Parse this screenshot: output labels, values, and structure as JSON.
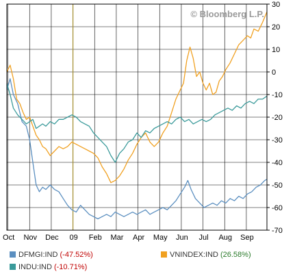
{
  "watermark": "© Bloomberg L.P.",
  "chart_data": {
    "type": "line",
    "title": "",
    "xlabel": "",
    "ylabel": "",
    "grid": true,
    "ylim": [
      -70,
      30
    ],
    "yticks": [
      30,
      20,
      10,
      0,
      -10,
      -20,
      -30,
      -40,
      -50,
      -60,
      -70
    ],
    "xlim": [
      0,
      12
    ],
    "x_tick_labels": [
      {
        "x": 0.05,
        "label": "Oct"
      },
      {
        "x": 1.05,
        "label": "Nov"
      },
      {
        "x": 2.05,
        "label": "Dec"
      },
      {
        "x": 3.05,
        "label": "09"
      },
      {
        "x": 4.05,
        "label": "Feb"
      },
      {
        "x": 5.05,
        "label": "Mar"
      },
      {
        "x": 6.05,
        "label": "Apr"
      },
      {
        "x": 7.05,
        "label": "May"
      },
      {
        "x": 8.05,
        "label": "Jun"
      },
      {
        "x": 9.05,
        "label": "Jul"
      },
      {
        "x": 10.05,
        "label": "Aug"
      },
      {
        "x": 11.05,
        "label": "Sep"
      }
    ],
    "year_marker_x": 3.05,
    "series": [
      {
        "name": "DFMGI:IND",
        "change": "(-47.52%)",
        "change_sign": "neg",
        "color": "#5b8fc0",
        "points": [
          [
            0,
            -8
          ],
          [
            0.15,
            -3
          ],
          [
            0.3,
            -10
          ],
          [
            0.5,
            -14
          ],
          [
            0.7,
            -22
          ],
          [
            0.9,
            -24
          ],
          [
            1.05,
            -30
          ],
          [
            1.2,
            -40
          ],
          [
            1.35,
            -50
          ],
          [
            1.5,
            -53
          ],
          [
            1.65,
            -51
          ],
          [
            1.8,
            -52
          ],
          [
            2.0,
            -50
          ],
          [
            2.2,
            -52
          ],
          [
            2.4,
            -53
          ],
          [
            2.6,
            -56
          ],
          [
            2.8,
            -59
          ],
          [
            3.0,
            -61
          ],
          [
            3.2,
            -62
          ],
          [
            3.4,
            -59
          ],
          [
            3.6,
            -61
          ],
          [
            3.8,
            -63
          ],
          [
            4.0,
            -64
          ],
          [
            4.2,
            -65
          ],
          [
            4.4,
            -64
          ],
          [
            4.6,
            -63
          ],
          [
            4.8,
            -64
          ],
          [
            5.0,
            -62
          ],
          [
            5.2,
            -63
          ],
          [
            5.4,
            -64
          ],
          [
            5.6,
            -63
          ],
          [
            5.8,
            -62
          ],
          [
            6.0,
            -63
          ],
          [
            6.2,
            -62
          ],
          [
            6.4,
            -61
          ],
          [
            6.6,
            -63
          ],
          [
            6.8,
            -62
          ],
          [
            7.0,
            -61
          ],
          [
            7.2,
            -60
          ],
          [
            7.4,
            -61
          ],
          [
            7.6,
            -59
          ],
          [
            7.8,
            -57
          ],
          [
            8.0,
            -54
          ],
          [
            8.2,
            -51
          ],
          [
            8.35,
            -48
          ],
          [
            8.5,
            -52
          ],
          [
            8.7,
            -56
          ],
          [
            8.9,
            -58
          ],
          [
            9.1,
            -60
          ],
          [
            9.3,
            -59
          ],
          [
            9.5,
            -58
          ],
          [
            9.7,
            -59
          ],
          [
            9.9,
            -57
          ],
          [
            10.1,
            -58
          ],
          [
            10.3,
            -56
          ],
          [
            10.5,
            -57
          ],
          [
            10.7,
            -55
          ],
          [
            10.9,
            -56
          ],
          [
            11.1,
            -54
          ],
          [
            11.3,
            -53
          ],
          [
            11.5,
            -51
          ],
          [
            11.7,
            -50
          ],
          [
            11.9,
            -48
          ],
          [
            12.0,
            -47.5
          ]
        ]
      },
      {
        "name": "VNINDEX:IND",
        "change": "(26.58%)",
        "change_sign": "pos",
        "color": "#f0a020",
        "points": [
          [
            0,
            0
          ],
          [
            0.15,
            3
          ],
          [
            0.3,
            -3
          ],
          [
            0.45,
            -12
          ],
          [
            0.6,
            -14
          ],
          [
            0.75,
            -18
          ],
          [
            0.9,
            -21
          ],
          [
            1.05,
            -20
          ],
          [
            1.2,
            -24
          ],
          [
            1.35,
            -28
          ],
          [
            1.5,
            -30
          ],
          [
            1.65,
            -33
          ],
          [
            1.8,
            -34
          ],
          [
            2.0,
            -37
          ],
          [
            2.2,
            -35
          ],
          [
            2.4,
            -33
          ],
          [
            2.6,
            -34
          ],
          [
            2.8,
            -33
          ],
          [
            3.0,
            -31
          ],
          [
            3.2,
            -32
          ],
          [
            3.4,
            -33
          ],
          [
            3.6,
            -34
          ],
          [
            3.8,
            -35
          ],
          [
            4.0,
            -36
          ],
          [
            4.2,
            -38
          ],
          [
            4.4,
            -42
          ],
          [
            4.6,
            -45
          ],
          [
            4.8,
            -49
          ],
          [
            5.0,
            -48
          ],
          [
            5.2,
            -46
          ],
          [
            5.4,
            -43
          ],
          [
            5.6,
            -39
          ],
          [
            5.8,
            -36
          ],
          [
            6.0,
            -32
          ],
          [
            6.2,
            -29
          ],
          [
            6.4,
            -27
          ],
          [
            6.6,
            -31
          ],
          [
            6.8,
            -33
          ],
          [
            7.0,
            -31
          ],
          [
            7.2,
            -27
          ],
          [
            7.4,
            -24
          ],
          [
            7.6,
            -18
          ],
          [
            7.8,
            -12
          ],
          [
            8.0,
            -8
          ],
          [
            8.15,
            -5
          ],
          [
            8.3,
            5
          ],
          [
            8.45,
            11
          ],
          [
            8.6,
            6
          ],
          [
            8.75,
            -2
          ],
          [
            8.9,
            0
          ],
          [
            9.05,
            -5
          ],
          [
            9.2,
            -8
          ],
          [
            9.35,
            -5
          ],
          [
            9.5,
            -10
          ],
          [
            9.65,
            -9
          ],
          [
            9.8,
            -4
          ],
          [
            9.95,
            -2
          ],
          [
            10.1,
            1
          ],
          [
            10.3,
            4
          ],
          [
            10.5,
            8
          ],
          [
            10.7,
            12
          ],
          [
            10.9,
            14
          ],
          [
            11.1,
            16
          ],
          [
            11.25,
            15
          ],
          [
            11.4,
            19
          ],
          [
            11.6,
            18
          ],
          [
            11.8,
            22
          ],
          [
            12.0,
            26.6
          ]
        ]
      },
      {
        "name": "INDU:IND",
        "change": "(-10.71%)",
        "change_sign": "neg",
        "color": "#3a9a9a",
        "points": [
          [
            0,
            -5
          ],
          [
            0.15,
            -10
          ],
          [
            0.3,
            -16
          ],
          [
            0.5,
            -19
          ],
          [
            0.7,
            -21
          ],
          [
            0.9,
            -23
          ],
          [
            1.05,
            -22
          ],
          [
            1.2,
            -21
          ],
          [
            1.35,
            -25
          ],
          [
            1.5,
            -24
          ],
          [
            1.65,
            -23
          ],
          [
            1.8,
            -24
          ],
          [
            2.0,
            -22
          ],
          [
            2.2,
            -23
          ],
          [
            2.4,
            -21
          ],
          [
            2.6,
            -21
          ],
          [
            2.8,
            -20
          ],
          [
            3.0,
            -19
          ],
          [
            3.2,
            -20
          ],
          [
            3.4,
            -22
          ],
          [
            3.6,
            -23
          ],
          [
            3.8,
            -24
          ],
          [
            4.0,
            -27
          ],
          [
            4.2,
            -29
          ],
          [
            4.4,
            -31
          ],
          [
            4.6,
            -33
          ],
          [
            4.8,
            -37
          ],
          [
            5.0,
            -40
          ],
          [
            5.2,
            -36
          ],
          [
            5.4,
            -34
          ],
          [
            5.6,
            -31
          ],
          [
            5.8,
            -30
          ],
          [
            6.0,
            -27
          ],
          [
            6.2,
            -29
          ],
          [
            6.4,
            -26
          ],
          [
            6.6,
            -27
          ],
          [
            6.8,
            -25
          ],
          [
            7.0,
            -24
          ],
          [
            7.2,
            -23
          ],
          [
            7.4,
            -22
          ],
          [
            7.6,
            -23
          ],
          [
            7.8,
            -21
          ],
          [
            8.0,
            -20
          ],
          [
            8.2,
            -22
          ],
          [
            8.4,
            -21
          ],
          [
            8.6,
            -23
          ],
          [
            8.8,
            -22
          ],
          [
            9.0,
            -21
          ],
          [
            9.2,
            -22
          ],
          [
            9.4,
            -21
          ],
          [
            9.6,
            -19
          ],
          [
            9.8,
            -18
          ],
          [
            10.0,
            -17
          ],
          [
            10.2,
            -16
          ],
          [
            10.4,
            -17
          ],
          [
            10.6,
            -15
          ],
          [
            10.8,
            -16
          ],
          [
            11.0,
            -14
          ],
          [
            11.2,
            -13
          ],
          [
            11.4,
            -14
          ],
          [
            11.6,
            -12
          ],
          [
            11.8,
            -12
          ],
          [
            12.0,
            -10.7
          ]
        ]
      }
    ],
    "legend_position": "bottom"
  }
}
